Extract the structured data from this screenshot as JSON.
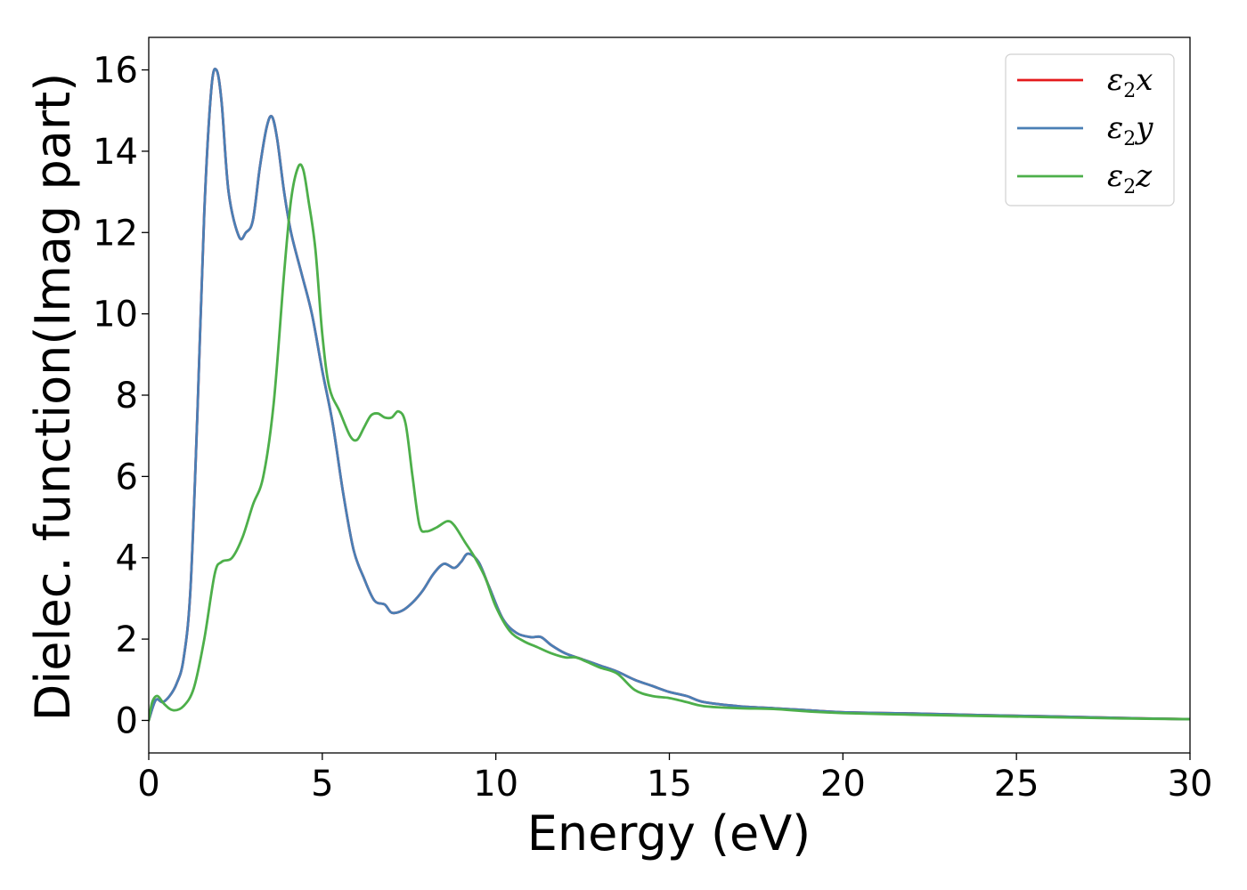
{
  "chart_data": {
    "type": "line",
    "xlabel": "Energy (eV)",
    "ylabel": "Dielec. function(Imag part)",
    "xlim": [
      0,
      30
    ],
    "ylim": [
      -0.8,
      16.8
    ],
    "xticks": [
      0,
      5,
      10,
      15,
      20,
      25,
      30
    ],
    "yticks": [
      0,
      2,
      4,
      6,
      8,
      10,
      12,
      14,
      16
    ],
    "grid": false,
    "legend_position": "top-right",
    "series": [
      {
        "name": "ε₂x",
        "legend_symbol": "ε",
        "legend_sub": "2",
        "legend_var": "x",
        "color": "#e41a1c",
        "x": [
          0,
          0.2,
          0.4,
          0.6,
          0.8,
          1.0,
          1.2,
          1.4,
          1.6,
          1.8,
          1.95,
          2.1,
          2.3,
          2.6,
          2.8,
          3.0,
          3.2,
          3.4,
          3.55,
          3.7,
          3.9,
          4.1,
          4.4,
          4.7,
          5.0,
          5.3,
          5.6,
          5.9,
          6.2,
          6.5,
          6.8,
          7.0,
          7.3,
          7.6,
          7.9,
          8.2,
          8.5,
          8.8,
          9.0,
          9.2,
          9.5,
          9.8,
          10.2,
          10.6,
          11.0,
          11.3,
          11.6,
          12.0,
          12.5,
          13.0,
          13.5,
          14.0,
          14.5,
          15.0,
          15.5,
          16.0,
          17.0,
          18.0,
          19.0,
          20.0,
          22.0,
          24.0,
          26.0,
          28.0,
          30.0
        ],
        "values": [
          0,
          0.5,
          0.45,
          0.6,
          0.9,
          1.5,
          3.2,
          7.5,
          12.5,
          15.5,
          16.0,
          15.2,
          13.0,
          11.9,
          12.0,
          12.3,
          13.6,
          14.6,
          14.85,
          14.3,
          13.0,
          12.0,
          11.0,
          10.0,
          8.6,
          7.3,
          5.6,
          4.2,
          3.5,
          2.95,
          2.85,
          2.65,
          2.7,
          2.9,
          3.2,
          3.6,
          3.85,
          3.75,
          3.9,
          4.1,
          3.9,
          3.3,
          2.5,
          2.15,
          2.05,
          2.05,
          1.85,
          1.65,
          1.5,
          1.35,
          1.2,
          1.0,
          0.85,
          0.7,
          0.6,
          0.45,
          0.35,
          0.3,
          0.25,
          0.2,
          0.17,
          0.13,
          0.1,
          0.06,
          0.03
        ]
      },
      {
        "name": "ε₂y",
        "legend_symbol": "ε",
        "legend_sub": "2",
        "legend_var": "y",
        "color": "#4a7fb5",
        "x": [
          0,
          0.2,
          0.4,
          0.6,
          0.8,
          1.0,
          1.2,
          1.4,
          1.6,
          1.8,
          1.95,
          2.1,
          2.3,
          2.6,
          2.8,
          3.0,
          3.2,
          3.4,
          3.55,
          3.7,
          3.9,
          4.1,
          4.4,
          4.7,
          5.0,
          5.3,
          5.6,
          5.9,
          6.2,
          6.5,
          6.8,
          7.0,
          7.3,
          7.6,
          7.9,
          8.2,
          8.5,
          8.8,
          9.0,
          9.2,
          9.5,
          9.8,
          10.2,
          10.6,
          11.0,
          11.3,
          11.6,
          12.0,
          12.5,
          13.0,
          13.5,
          14.0,
          14.5,
          15.0,
          15.5,
          16.0,
          17.0,
          18.0,
          19.0,
          20.0,
          22.0,
          24.0,
          26.0,
          28.0,
          30.0
        ],
        "values": [
          0,
          0.5,
          0.45,
          0.6,
          0.9,
          1.5,
          3.2,
          7.5,
          12.5,
          15.5,
          16.0,
          15.2,
          13.0,
          11.9,
          12.0,
          12.3,
          13.6,
          14.6,
          14.85,
          14.3,
          13.0,
          12.0,
          11.0,
          10.0,
          8.6,
          7.3,
          5.6,
          4.2,
          3.5,
          2.95,
          2.85,
          2.65,
          2.7,
          2.9,
          3.2,
          3.6,
          3.85,
          3.75,
          3.9,
          4.1,
          3.9,
          3.3,
          2.5,
          2.15,
          2.05,
          2.05,
          1.85,
          1.65,
          1.5,
          1.35,
          1.2,
          1.0,
          0.85,
          0.7,
          0.6,
          0.45,
          0.35,
          0.3,
          0.25,
          0.2,
          0.17,
          0.13,
          0.1,
          0.06,
          0.03
        ]
      },
      {
        "name": "ε₂z",
        "legend_symbol": "ε",
        "legend_sub": "2",
        "legend_var": "z",
        "color": "#4daf4a",
        "x": [
          0,
          0.1,
          0.25,
          0.45,
          0.7,
          1.0,
          1.3,
          1.6,
          1.9,
          2.1,
          2.4,
          2.7,
          3.0,
          3.3,
          3.6,
          3.9,
          4.1,
          4.3,
          4.45,
          4.6,
          4.8,
          5.0,
          5.2,
          5.5,
          5.8,
          6.0,
          6.2,
          6.4,
          6.6,
          6.8,
          7.0,
          7.2,
          7.4,
          7.6,
          7.8,
          8.0,
          8.3,
          8.6,
          8.8,
          9.1,
          9.4,
          9.7,
          10.0,
          10.4,
          10.8,
          11.2,
          11.6,
          12.0,
          12.3,
          12.6,
          13.0,
          13.5,
          14.0,
          14.5,
          15.0,
          15.5,
          16.0,
          17.0,
          18.0,
          19.0,
          20.0,
          22.0,
          24.0,
          26.0,
          28.0,
          30.0
        ],
        "values": [
          0,
          0.45,
          0.6,
          0.4,
          0.25,
          0.35,
          0.8,
          2.0,
          3.6,
          3.9,
          4.0,
          4.5,
          5.3,
          6.0,
          7.8,
          11.0,
          12.8,
          13.6,
          13.55,
          12.8,
          11.6,
          9.5,
          8.2,
          7.6,
          7.0,
          6.9,
          7.2,
          7.5,
          7.55,
          7.45,
          7.45,
          7.6,
          7.3,
          6.0,
          4.8,
          4.65,
          4.75,
          4.9,
          4.8,
          4.4,
          4.0,
          3.5,
          2.8,
          2.2,
          1.95,
          1.8,
          1.65,
          1.55,
          1.55,
          1.45,
          1.3,
          1.15,
          0.75,
          0.6,
          0.55,
          0.45,
          0.35,
          0.3,
          0.28,
          0.22,
          0.18,
          0.14,
          0.11,
          0.08,
          0.05,
          0.03
        ]
      }
    ]
  }
}
